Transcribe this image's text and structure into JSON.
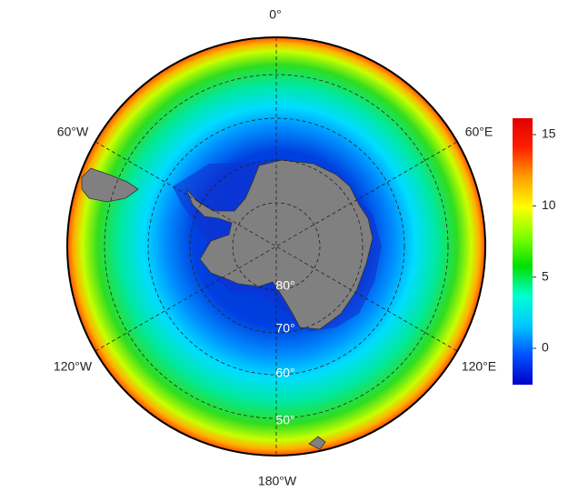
{
  "map": {
    "longitude_labels": [
      "0°",
      "60°E",
      "120°E",
      "180°W",
      "120°W",
      "60°W"
    ],
    "latitude_labels": [
      "80°",
      "70°",
      "60°",
      "50°"
    ]
  },
  "colorbar": {
    "lim": [
      -2.55,
      16.15
    ],
    "ticks": [
      0,
      5,
      10,
      15
    ],
    "colormap": [
      "#0000c8",
      "#0050ff",
      "#00c8ff",
      "#00ffd0",
      "#00e000",
      "#80ff00",
      "#ffff00",
      "#ffa000",
      "#ff2000",
      "#e00000"
    ]
  }
}
